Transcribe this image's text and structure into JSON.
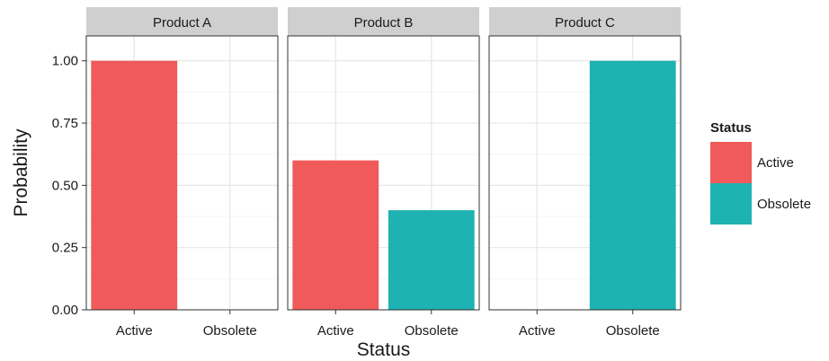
{
  "chart_data": {
    "type": "bar",
    "facet_by": "product",
    "facets": [
      {
        "label": "Product A",
        "categories": [
          "Active",
          "Obsolete"
        ],
        "values": [
          1.0,
          0.0
        ]
      },
      {
        "label": "Product B",
        "categories": [
          "Active",
          "Obsolete"
        ],
        "values": [
          0.6,
          0.4
        ]
      },
      {
        "label": "Product C",
        "categories": [
          "Active",
          "Obsolete"
        ],
        "values": [
          0.0,
          1.0
        ]
      }
    ],
    "xlabel": "Status",
    "ylabel": "Probability",
    "ylim": [
      0,
      1.1
    ],
    "yticks": [
      0.0,
      0.25,
      0.5,
      0.75,
      1.0
    ],
    "ytick_labels": [
      "0.00",
      "0.25",
      "0.50",
      "0.75",
      "1.00"
    ],
    "grid": true,
    "legend": {
      "title": "Status",
      "position": "right",
      "items": [
        {
          "label": "Active",
          "color": "#F05A5A"
        },
        {
          "label": "Obsolete",
          "color": "#1EB2B2"
        }
      ]
    },
    "colors": {
      "Active": "#F05A5A",
      "Obsolete": "#1EB2B2"
    }
  }
}
